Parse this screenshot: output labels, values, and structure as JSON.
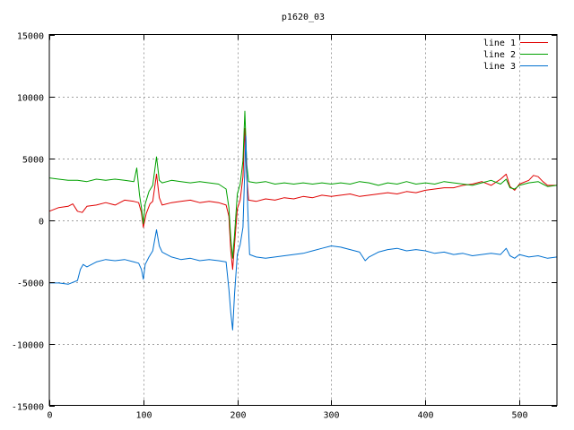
{
  "chart_data": {
    "type": "line",
    "title": "p1620_03",
    "xlabel": "",
    "ylabel": "",
    "xlim": [
      0,
      540
    ],
    "ylim": [
      -15000,
      15000
    ],
    "xticks": [
      0,
      100,
      200,
      300,
      400,
      500
    ],
    "yticks": [
      -15000,
      -10000,
      -5000,
      0,
      5000,
      10000,
      15000
    ],
    "grid": true,
    "legend_position": "top-right",
    "series": [
      {
        "name": "line 1",
        "color": "#e00000",
        "points": [
          [
            0,
            700
          ],
          [
            10,
            1000
          ],
          [
            20,
            1100
          ],
          [
            25,
            1300
          ],
          [
            30,
            700
          ],
          [
            35,
            600
          ],
          [
            40,
            1100
          ],
          [
            50,
            1200
          ],
          [
            60,
            1400
          ],
          [
            70,
            1200
          ],
          [
            80,
            1600
          ],
          [
            90,
            1500
          ],
          [
            95,
            1400
          ],
          [
            98,
            600
          ],
          [
            100,
            -600
          ],
          [
            103,
            500
          ],
          [
            107,
            1300
          ],
          [
            110,
            1500
          ],
          [
            114,
            3700
          ],
          [
            117,
            1800
          ],
          [
            120,
            1200
          ],
          [
            130,
            1400
          ],
          [
            140,
            1500
          ],
          [
            150,
            1600
          ],
          [
            160,
            1400
          ],
          [
            170,
            1500
          ],
          [
            180,
            1400
          ],
          [
            188,
            1200
          ],
          [
            191,
            300
          ],
          [
            193,
            -2500
          ],
          [
            195,
            -4000
          ],
          [
            197,
            -2000
          ],
          [
            200,
            900
          ],
          [
            203,
            1600
          ],
          [
            206,
            3500
          ],
          [
            208,
            7400
          ],
          [
            210,
            3500
          ],
          [
            212,
            1600
          ],
          [
            220,
            1500
          ],
          [
            230,
            1700
          ],
          [
            240,
            1600
          ],
          [
            250,
            1800
          ],
          [
            260,
            1700
          ],
          [
            270,
            1900
          ],
          [
            280,
            1800
          ],
          [
            290,
            2000
          ],
          [
            300,
            1900
          ],
          [
            310,
            2000
          ],
          [
            320,
            2100
          ],
          [
            330,
            1900
          ],
          [
            340,
            2000
          ],
          [
            350,
            2100
          ],
          [
            360,
            2200
          ],
          [
            370,
            2100
          ],
          [
            380,
            2300
          ],
          [
            390,
            2200
          ],
          [
            400,
            2400
          ],
          [
            410,
            2500
          ],
          [
            420,
            2600
          ],
          [
            430,
            2600
          ],
          [
            440,
            2800
          ],
          [
            450,
            2900
          ],
          [
            460,
            3100
          ],
          [
            470,
            2800
          ],
          [
            480,
            3300
          ],
          [
            486,
            3700
          ],
          [
            490,
            2700
          ],
          [
            495,
            2400
          ],
          [
            500,
            2900
          ],
          [
            510,
            3200
          ],
          [
            515,
            3600
          ],
          [
            520,
            3500
          ],
          [
            525,
            3100
          ],
          [
            530,
            2800
          ],
          [
            540,
            2800
          ]
        ]
      },
      {
        "name": "line 2",
        "color": "#00a000",
        "points": [
          [
            0,
            3400
          ],
          [
            10,
            3300
          ],
          [
            20,
            3200
          ],
          [
            30,
            3200
          ],
          [
            40,
            3100
          ],
          [
            50,
            3300
          ],
          [
            60,
            3200
          ],
          [
            70,
            3300
          ],
          [
            80,
            3200
          ],
          [
            90,
            3100
          ],
          [
            93,
            4200
          ],
          [
            96,
            2000
          ],
          [
            98,
            1000
          ],
          [
            100,
            -300
          ],
          [
            102,
            1300
          ],
          [
            106,
            2300
          ],
          [
            110,
            2800
          ],
          [
            114,
            5100
          ],
          [
            117,
            3200
          ],
          [
            120,
            3000
          ],
          [
            130,
            3200
          ],
          [
            140,
            3100
          ],
          [
            150,
            3000
          ],
          [
            160,
            3100
          ],
          [
            170,
            3000
          ],
          [
            180,
            2900
          ],
          [
            188,
            2500
          ],
          [
            191,
            1000
          ],
          [
            193,
            -1500
          ],
          [
            195,
            -3100
          ],
          [
            197,
            -1200
          ],
          [
            200,
            2100
          ],
          [
            203,
            2900
          ],
          [
            206,
            4800
          ],
          [
            208,
            8800
          ],
          [
            210,
            4500
          ],
          [
            212,
            3100
          ],
          [
            220,
            3000
          ],
          [
            230,
            3100
          ],
          [
            240,
            2900
          ],
          [
            250,
            3000
          ],
          [
            260,
            2900
          ],
          [
            270,
            3000
          ],
          [
            280,
            2900
          ],
          [
            290,
            3000
          ],
          [
            300,
            2900
          ],
          [
            310,
            3000
          ],
          [
            320,
            2900
          ],
          [
            330,
            3100
          ],
          [
            340,
            3000
          ],
          [
            350,
            2800
          ],
          [
            360,
            3000
          ],
          [
            370,
            2900
          ],
          [
            380,
            3100
          ],
          [
            390,
            2900
          ],
          [
            400,
            3000
          ],
          [
            410,
            2900
          ],
          [
            420,
            3100
          ],
          [
            430,
            3000
          ],
          [
            440,
            2900
          ],
          [
            450,
            2800
          ],
          [
            460,
            3000
          ],
          [
            470,
            3200
          ],
          [
            480,
            2900
          ],
          [
            486,
            3300
          ],
          [
            490,
            2600
          ],
          [
            495,
            2500
          ],
          [
            500,
            2800
          ],
          [
            510,
            3000
          ],
          [
            520,
            3100
          ],
          [
            525,
            2900
          ],
          [
            530,
            2700
          ],
          [
            540,
            2800
          ]
        ]
      },
      {
        "name": "line 3",
        "color": "#0070d0",
        "points": [
          [
            0,
            -5100
          ],
          [
            10,
            -5100
          ],
          [
            20,
            -5200
          ],
          [
            30,
            -4900
          ],
          [
            33,
            -4000
          ],
          [
            36,
            -3600
          ],
          [
            40,
            -3800
          ],
          [
            50,
            -3400
          ],
          [
            60,
            -3200
          ],
          [
            70,
            -3300
          ],
          [
            80,
            -3200
          ],
          [
            90,
            -3400
          ],
          [
            95,
            -3500
          ],
          [
            98,
            -4000
          ],
          [
            100,
            -4800
          ],
          [
            102,
            -3600
          ],
          [
            106,
            -3000
          ],
          [
            110,
            -2500
          ],
          [
            114,
            -800
          ],
          [
            117,
            -2100
          ],
          [
            120,
            -2600
          ],
          [
            130,
            -3000
          ],
          [
            140,
            -3200
          ],
          [
            150,
            -3100
          ],
          [
            160,
            -3300
          ],
          [
            170,
            -3200
          ],
          [
            180,
            -3300
          ],
          [
            188,
            -3400
          ],
          [
            191,
            -5600
          ],
          [
            193,
            -7500
          ],
          [
            195,
            -8900
          ],
          [
            197,
            -6000
          ],
          [
            200,
            -2800
          ],
          [
            203,
            -2000
          ],
          [
            206,
            -600
          ],
          [
            209,
            6800
          ],
          [
            211,
            1000
          ],
          [
            213,
            -2800
          ],
          [
            220,
            -3000
          ],
          [
            230,
            -3100
          ],
          [
            240,
            -3000
          ],
          [
            250,
            -2900
          ],
          [
            260,
            -2800
          ],
          [
            270,
            -2700
          ],
          [
            280,
            -2500
          ],
          [
            290,
            -2300
          ],
          [
            300,
            -2100
          ],
          [
            310,
            -2200
          ],
          [
            320,
            -2400
          ],
          [
            330,
            -2600
          ],
          [
            336,
            -3300
          ],
          [
            340,
            -3000
          ],
          [
            350,
            -2600
          ],
          [
            360,
            -2400
          ],
          [
            370,
            -2300
          ],
          [
            380,
            -2500
          ],
          [
            390,
            -2400
          ],
          [
            400,
            -2500
          ],
          [
            410,
            -2700
          ],
          [
            420,
            -2600
          ],
          [
            430,
            -2800
          ],
          [
            440,
            -2700
          ],
          [
            450,
            -2900
          ],
          [
            460,
            -2800
          ],
          [
            470,
            -2700
          ],
          [
            480,
            -2800
          ],
          [
            486,
            -2300
          ],
          [
            490,
            -2900
          ],
          [
            495,
            -3100
          ],
          [
            500,
            -2800
          ],
          [
            510,
            -3000
          ],
          [
            520,
            -2900
          ],
          [
            530,
            -3100
          ],
          [
            540,
            -3000
          ]
        ]
      }
    ]
  }
}
